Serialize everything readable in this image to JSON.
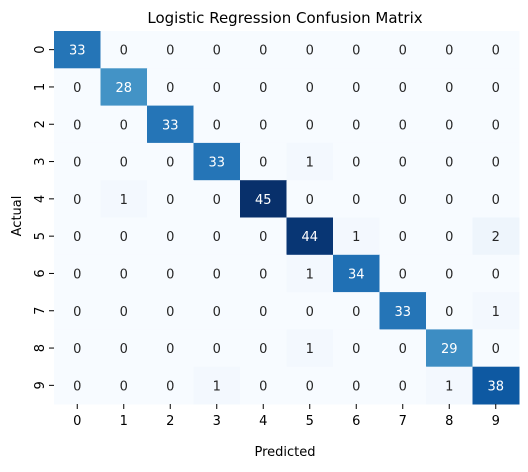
{
  "chart_data": {
    "type": "heatmap",
    "title": "Logistic Regression Confusion Matrix",
    "xlabel": "Predicted",
    "ylabel": "Actual",
    "x_categories": [
      "0",
      "1",
      "2",
      "3",
      "4",
      "5",
      "6",
      "7",
      "8",
      "9"
    ],
    "y_categories": [
      "0",
      "1",
      "2",
      "3",
      "4",
      "5",
      "6",
      "7",
      "8",
      "9"
    ],
    "values": [
      [
        33,
        0,
        0,
        0,
        0,
        0,
        0,
        0,
        0,
        0
      ],
      [
        0,
        28,
        0,
        0,
        0,
        0,
        0,
        0,
        0,
        0
      ],
      [
        0,
        0,
        33,
        0,
        0,
        0,
        0,
        0,
        0,
        0
      ],
      [
        0,
        0,
        0,
        33,
        0,
        1,
        0,
        0,
        0,
        0
      ],
      [
        0,
        1,
        0,
        0,
        45,
        0,
        0,
        0,
        0,
        0
      ],
      [
        0,
        0,
        0,
        0,
        0,
        44,
        1,
        0,
        0,
        2
      ],
      [
        0,
        0,
        0,
        0,
        0,
        1,
        34,
        0,
        0,
        0
      ],
      [
        0,
        0,
        0,
        0,
        0,
        0,
        0,
        33,
        0,
        1
      ],
      [
        0,
        0,
        0,
        0,
        0,
        1,
        0,
        0,
        29,
        0
      ],
      [
        0,
        0,
        0,
        1,
        0,
        0,
        0,
        0,
        1,
        38
      ]
    ],
    "colormap": "Blues",
    "value_range": [
      0,
      45
    ],
    "colorbar": false,
    "grid": false
  }
}
